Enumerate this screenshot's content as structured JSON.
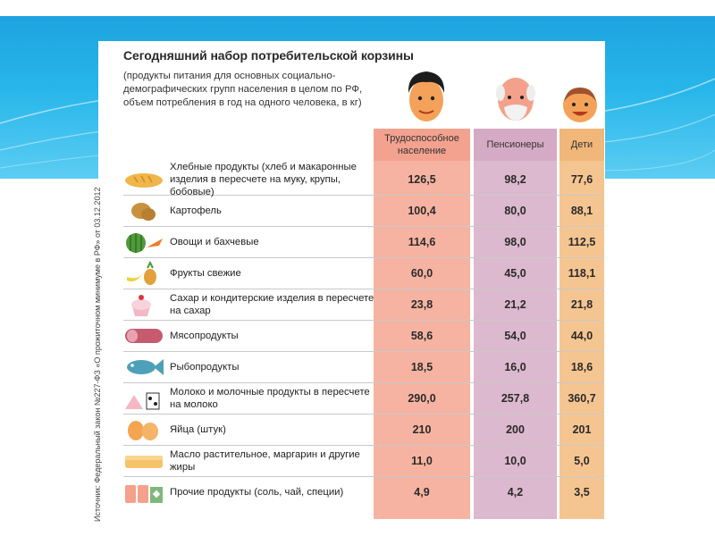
{
  "title": "Сегодняшний набор потребительской корзины",
  "subtitle": "(продукты питания для основных социально-демографических групп населения в целом по РФ, объем потребления в год на одного человека, в кг)",
  "source": "Источник: Федеральный закон №227-ФЗ «О прожиточном минимуме в РФ» от 03.12.2012",
  "columns": [
    "Трудоспособное население",
    "Пенсионеры",
    "Дети"
  ],
  "rows": [
    {
      "label": "Хлебные продукты (хлеб и макаронные изделия в пересчете на муку, крупы, бобовые)",
      "icon": "bread-icon",
      "values": [
        "126,5",
        "98,2",
        "77,6"
      ]
    },
    {
      "label": "Картофель",
      "icon": "potato-icon",
      "values": [
        "100,4",
        "80,0",
        "88,1"
      ]
    },
    {
      "label": "Овощи и бахчевые",
      "icon": "vegetables-icon",
      "values": [
        "114,6",
        "98,0",
        "112,5"
      ]
    },
    {
      "label": "Фрукты свежие",
      "icon": "fruits-icon",
      "values": [
        "60,0",
        "45,0",
        "118,1"
      ]
    },
    {
      "label": "Сахар и кондитерские изделия в пересчете на сахар",
      "icon": "cupcake-icon",
      "values": [
        "23,8",
        "21,2",
        "21,8"
      ]
    },
    {
      "label": "Мясопродукты",
      "icon": "sausage-icon",
      "values": [
        "58,6",
        "54,0",
        "44,0"
      ]
    },
    {
      "label": "Рыбопродукты",
      "icon": "fish-icon",
      "values": [
        "18,5",
        "16,0",
        "18,6"
      ]
    },
    {
      "label": "Молоко и молочные продукты в пересчете на молоко",
      "icon": "milk-icon",
      "values": [
        "290,0",
        "257,8",
        "360,7"
      ]
    },
    {
      "label": "Яйца (штук)",
      "icon": "eggs-icon",
      "values": [
        "210",
        "200",
        "201"
      ]
    },
    {
      "label": "Масло растительное, маргарин и другие жиры",
      "icon": "butter-icon",
      "values": [
        "11,0",
        "10,0",
        "5,0"
      ]
    },
    {
      "label": "Прочие продукты (соль, чай, специи)",
      "icon": "spices-icon",
      "values": [
        "4,9",
        "4,2",
        "3,5"
      ]
    }
  ],
  "colors": {
    "worker": "#f6b3a1",
    "pensioner": "#dcb9cf",
    "kids": "#f5c591",
    "band": "#27b6ea"
  }
}
